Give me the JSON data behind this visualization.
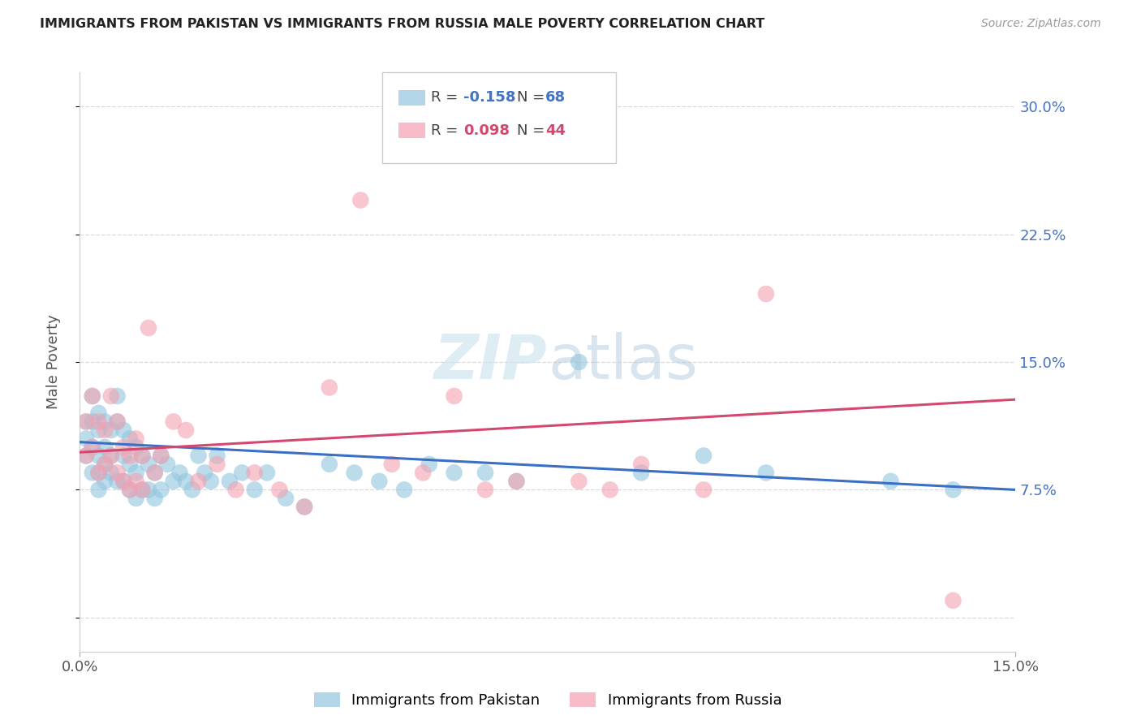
{
  "title": "IMMIGRANTS FROM PAKISTAN VS IMMIGRANTS FROM RUSSIA MALE POVERTY CORRELATION CHART",
  "source": "Source: ZipAtlas.com",
  "ylabel": "Male Poverty",
  "pakistan_R": -0.158,
  "pakistan_N": 68,
  "russia_R": 0.098,
  "russia_N": 44,
  "pakistan_color": "#92c5de",
  "russia_color": "#f4a0b0",
  "pakistan_line_color": "#3a6fc4",
  "russia_line_color": "#d44870",
  "watermark_color": "#d0e4f0",
  "right_tick_color": "#4472c4",
  "xlim": [
    0.0,
    0.15
  ],
  "ylim": [
    -0.02,
    0.32
  ],
  "ytick_vals_right": [
    0.075,
    0.15,
    0.225,
    0.3
  ],
  "ytick_labels_right": [
    "7.5%",
    "15.0%",
    "22.5%",
    "30.0%"
  ],
  "grid_color": "#d8d8d8",
  "pakistan_x": [
    0.001,
    0.001,
    0.001,
    0.002,
    0.002,
    0.002,
    0.002,
    0.003,
    0.003,
    0.003,
    0.003,
    0.003,
    0.004,
    0.004,
    0.004,
    0.004,
    0.005,
    0.005,
    0.005,
    0.006,
    0.006,
    0.006,
    0.007,
    0.007,
    0.007,
    0.008,
    0.008,
    0.008,
    0.009,
    0.009,
    0.009,
    0.01,
    0.01,
    0.011,
    0.011,
    0.012,
    0.012,
    0.013,
    0.013,
    0.014,
    0.015,
    0.016,
    0.017,
    0.018,
    0.019,
    0.02,
    0.021,
    0.022,
    0.024,
    0.026,
    0.028,
    0.03,
    0.033,
    0.036,
    0.04,
    0.044,
    0.048,
    0.052,
    0.056,
    0.06,
    0.065,
    0.07,
    0.08,
    0.09,
    0.1,
    0.11,
    0.13,
    0.14
  ],
  "pakistan_y": [
    0.115,
    0.105,
    0.095,
    0.13,
    0.115,
    0.1,
    0.085,
    0.12,
    0.11,
    0.095,
    0.085,
    0.075,
    0.115,
    0.1,
    0.09,
    0.08,
    0.11,
    0.095,
    0.085,
    0.13,
    0.115,
    0.08,
    0.11,
    0.095,
    0.08,
    0.105,
    0.09,
    0.075,
    0.1,
    0.085,
    0.07,
    0.095,
    0.075,
    0.09,
    0.075,
    0.085,
    0.07,
    0.095,
    0.075,
    0.09,
    0.08,
    0.085,
    0.08,
    0.075,
    0.095,
    0.085,
    0.08,
    0.095,
    0.08,
    0.085,
    0.075,
    0.085,
    0.07,
    0.065,
    0.09,
    0.085,
    0.08,
    0.075,
    0.09,
    0.085,
    0.085,
    0.08,
    0.15,
    0.085,
    0.095,
    0.085,
    0.08,
    0.075
  ],
  "russia_x": [
    0.001,
    0.001,
    0.002,
    0.002,
    0.003,
    0.003,
    0.004,
    0.004,
    0.005,
    0.005,
    0.006,
    0.006,
    0.007,
    0.007,
    0.008,
    0.008,
    0.009,
    0.009,
    0.01,
    0.01,
    0.011,
    0.012,
    0.013,
    0.015,
    0.017,
    0.019,
    0.022,
    0.025,
    0.028,
    0.032,
    0.036,
    0.04,
    0.05,
    0.055,
    0.06,
    0.065,
    0.07,
    0.08,
    0.09,
    0.1,
    0.045,
    0.085,
    0.11,
    0.14
  ],
  "russia_y": [
    0.115,
    0.095,
    0.13,
    0.1,
    0.115,
    0.085,
    0.11,
    0.09,
    0.13,
    0.095,
    0.115,
    0.085,
    0.1,
    0.08,
    0.095,
    0.075,
    0.105,
    0.08,
    0.095,
    0.075,
    0.17,
    0.085,
    0.095,
    0.115,
    0.11,
    0.08,
    0.09,
    0.075,
    0.085,
    0.075,
    0.065,
    0.135,
    0.09,
    0.085,
    0.13,
    0.075,
    0.08,
    0.08,
    0.09,
    0.075,
    0.245,
    0.075,
    0.19,
    0.01
  ]
}
